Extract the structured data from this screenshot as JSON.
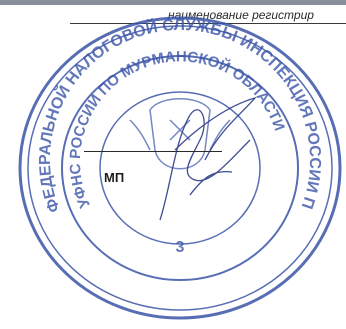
{
  "document": {
    "registration_caption": "наименование регистрир",
    "stamp_label": "МП"
  },
  "seal": {
    "outer_ring_text": "ФЕДЕРАЛЬНОЙ НАЛОГОВОЙ СЛУЖБЫ ИНСПЕКЦИЯ РОССИИ ПО Г МУРМАНСКУ",
    "inner_ring_text": "УФНС РОССИИ ПО МУРМАНСКОЙ ОБЛАСТИ",
    "number_text": "3",
    "ink_color": "#3b55a8"
  }
}
